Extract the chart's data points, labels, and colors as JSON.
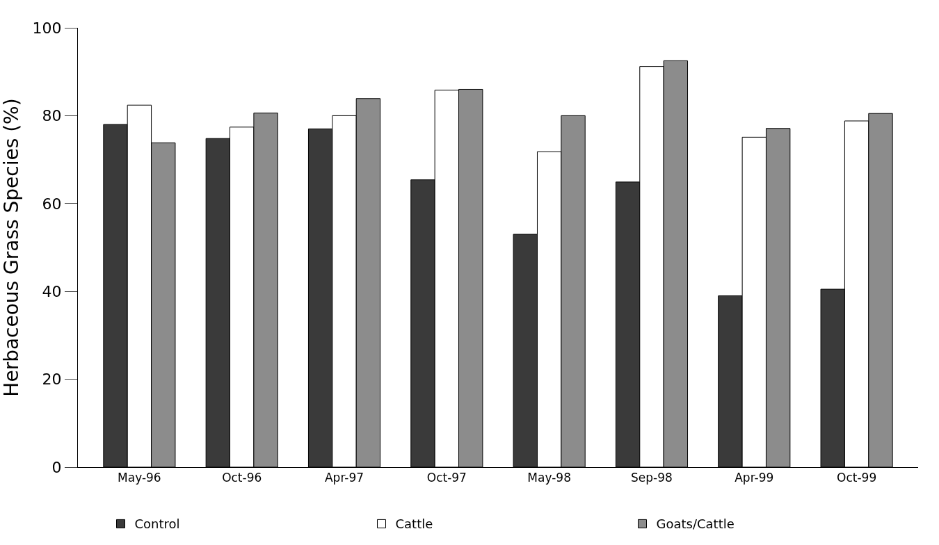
{
  "chart_data": {
    "type": "bar",
    "ylabel": "Herbaceous Grass Species (%)",
    "categories": [
      "May-96",
      "Oct-96",
      "Apr-97",
      "Oct-97",
      "May-98",
      "Sep-98",
      "Apr-99",
      "Oct-99"
    ],
    "series": [
      {
        "name": "Control",
        "color": "#3a3a3a",
        "values": [
          78,
          74.8,
          77,
          65.4,
          53,
          64.9,
          39,
          40.5
        ]
      },
      {
        "name": "Cattle",
        "color": "#ffffff",
        "values": [
          82.4,
          77.4,
          80,
          85.8,
          71.8,
          91.2,
          75.1,
          78.8
        ]
      },
      {
        "name": "Goats/Cattle",
        "color": "#8c8c8c",
        "values": [
          73.8,
          80.6,
          83.9,
          86,
          80,
          92.5,
          77.1,
          80.5
        ]
      }
    ],
    "ylim": [
      0,
      100
    ],
    "yticks": [
      0,
      20,
      40,
      60,
      80,
      100
    ],
    "legend": "bottom"
  }
}
